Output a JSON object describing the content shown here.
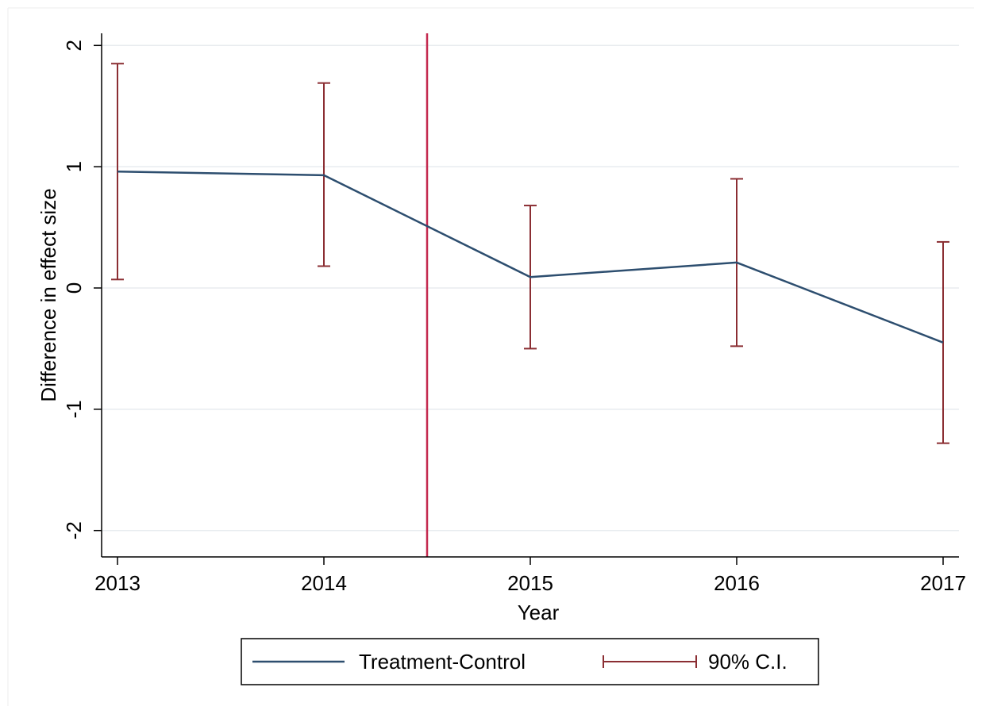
{
  "chart_data": {
    "type": "line",
    "xlabel": "Year",
    "ylabel": "Difference in effect size",
    "x": [
      2013,
      2014,
      2015,
      2016,
      2017
    ],
    "x_ticks": [
      "2013",
      "2014",
      "2015",
      "2016",
      "2017"
    ],
    "y_ticks": [
      "-2",
      "-1",
      "0",
      "1",
      "2"
    ],
    "xlim": [
      2013,
      2017
    ],
    "ylim": [
      -2.1,
      2.1
    ],
    "grid": true,
    "legend_position": "bottom",
    "reference_line_x": 2014.5,
    "series": [
      {
        "name": "Treatment-Control",
        "values": [
          0.96,
          0.93,
          0.09,
          0.21,
          -0.45
        ]
      },
      {
        "name": "90% C.I.",
        "lower": [
          0.07,
          0.18,
          -0.5,
          -0.48,
          -1.28
        ],
        "upper": [
          1.85,
          1.69,
          0.68,
          0.9,
          0.38
        ]
      }
    ],
    "colors": {
      "line": "#2d4e6f",
      "ci": "#8b2e33",
      "reference": "#c4294f",
      "grid": "#e8ecef",
      "axis": "#000000"
    }
  }
}
